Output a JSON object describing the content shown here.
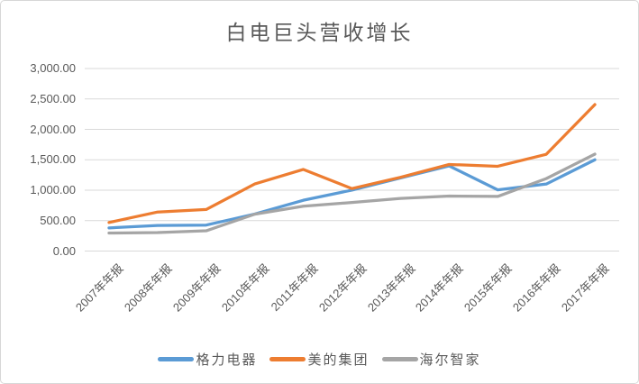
{
  "chart_data": {
    "type": "line",
    "title": "白电巨头营收增长",
    "unit_note": "",
    "categories": [
      "2007年年报",
      "2008年年报",
      "2009年年报",
      "2010年年报",
      "2011年年报",
      "2012年年报",
      "2013年年报",
      "2014年年报",
      "2015年年报",
      "2016年年报",
      "2017年年报"
    ],
    "series": [
      {
        "name": "格力电器",
        "color": "#5B9BD5",
        "values": [
          380.41,
          420.32,
          426.37,
          608.07,
          835.17,
          1001.1,
          1200.43,
          1400.05,
          1005.64,
          1101.13,
          1500.2
        ]
      },
      {
        "name": "美的集团",
        "color": "#ED7D31",
        "values": [
          469.45,
          641.22,
          682.71,
          1102.74,
          1341.17,
          1026.51,
          1212.65,
          1423.11,
          1393.47,
          1590.44,
          2407.12
        ]
      },
      {
        "name": "海尔智家",
        "color": "#A5A5A5",
        "values": [
          295.68,
          303.08,
          332.79,
          605.88,
          736.63,
          798.57,
          864.88,
          903.24,
          897.48,
          1190.66,
          1592.54
        ]
      }
    ],
    "y_axis": {
      "min": 0,
      "max": 3000,
      "step": 500,
      "tick_labels_top_to_bottom": [
        "3,000.00",
        "2,500.00",
        "2,000.00",
        "1,500.00",
        "1,000.00",
        "500.00",
        "0.00"
      ]
    },
    "x_axis": {
      "label_rotation_deg": -45
    },
    "grid": true,
    "legend_position": "bottom",
    "colors": {
      "gridline": "#D9D9D9",
      "text": "#595959",
      "border": "#D7D7D7",
      "background": "#FFFFFF"
    }
  }
}
